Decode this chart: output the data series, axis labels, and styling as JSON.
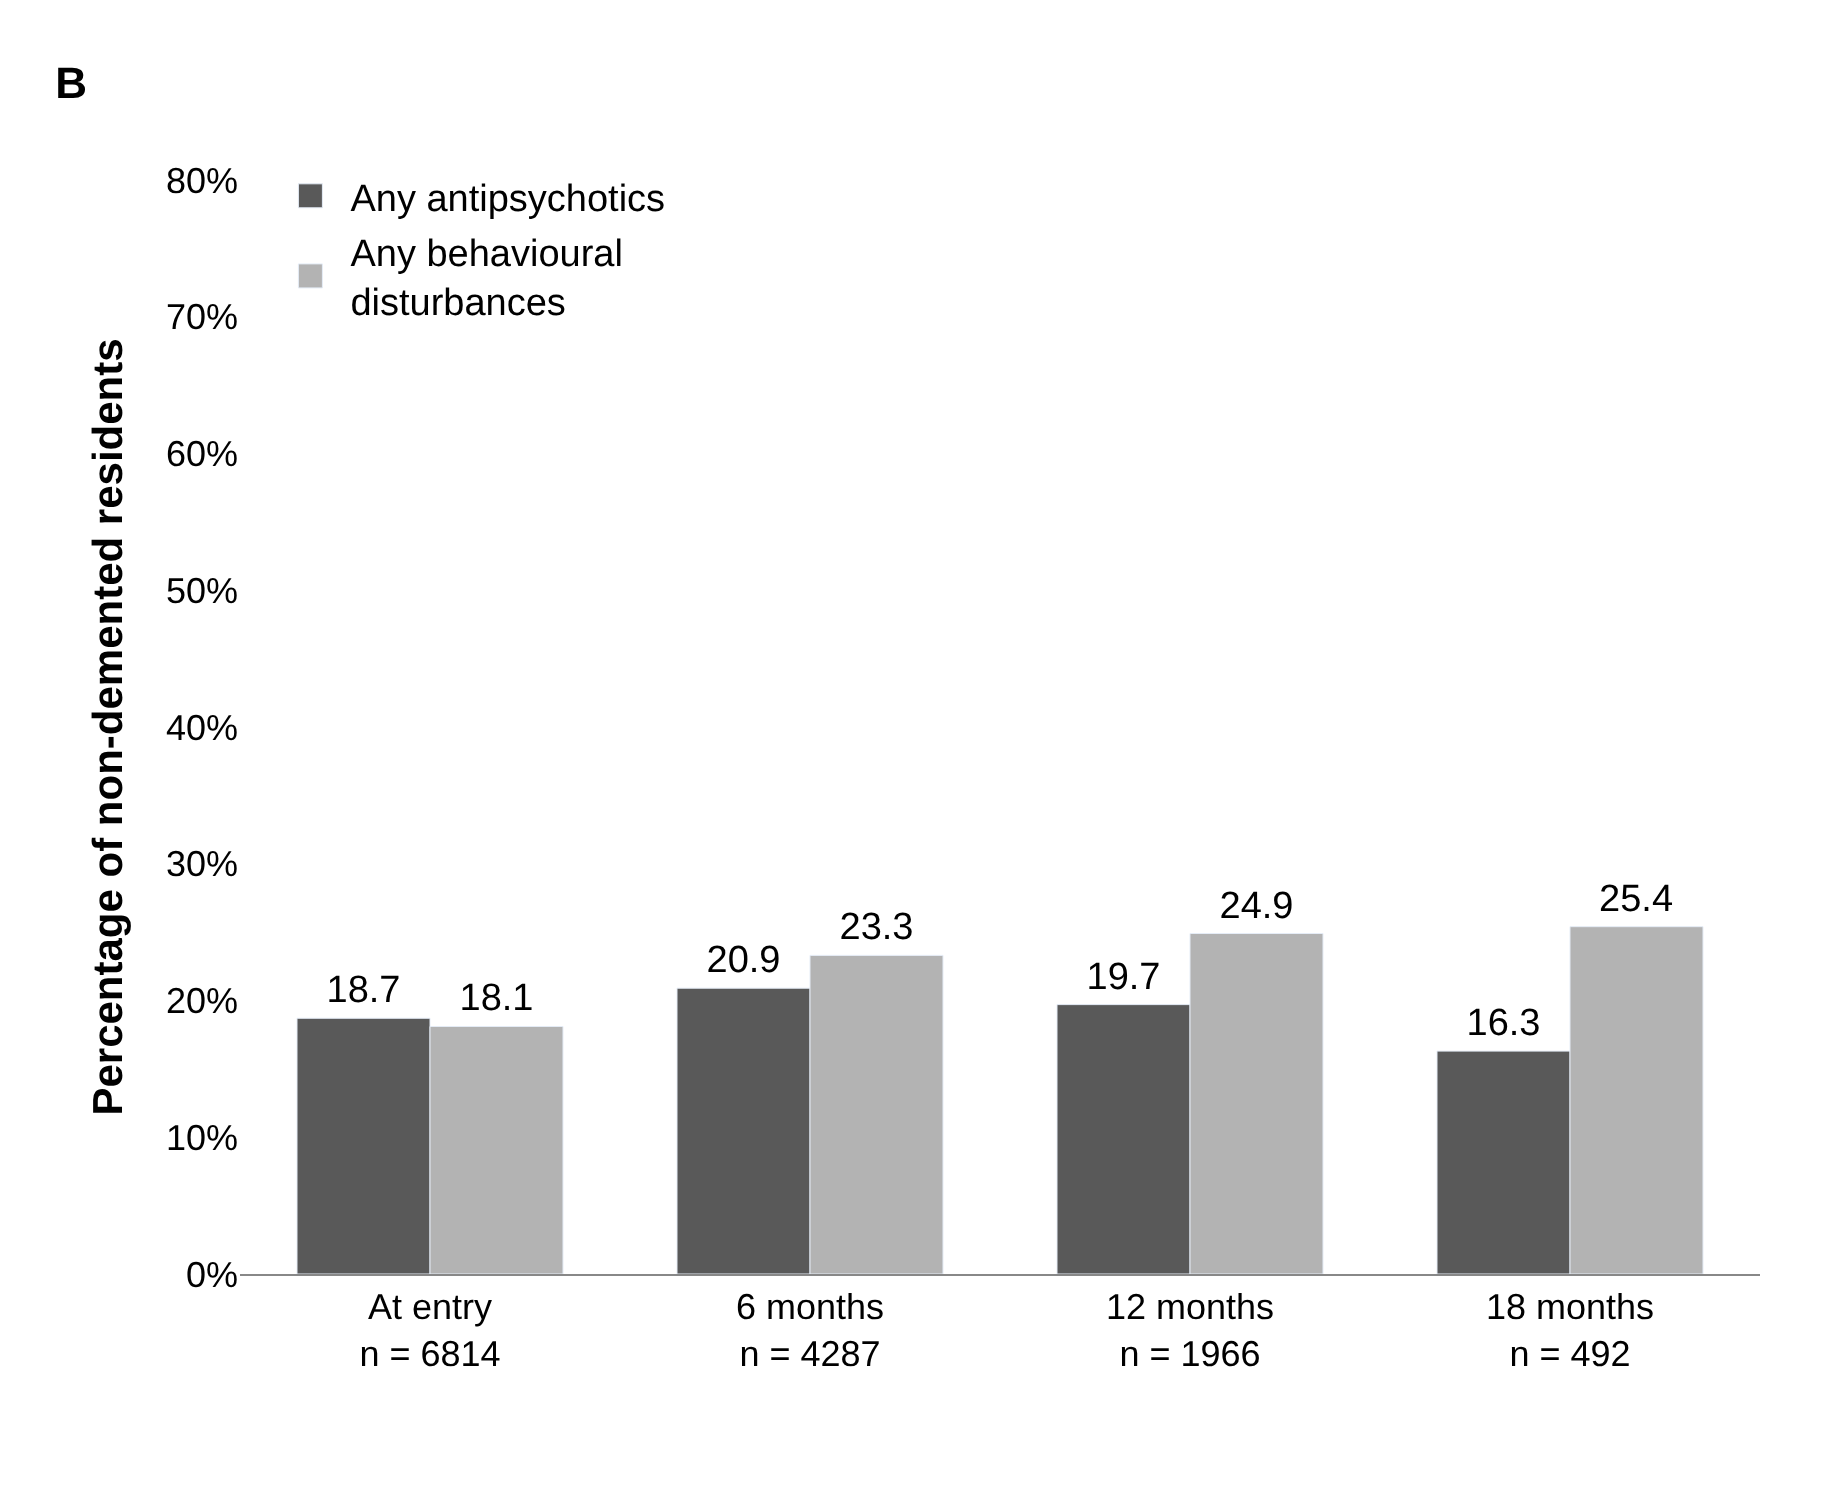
{
  "chart_data": {
    "type": "bar",
    "title": "B",
    "ylabel": "Percentage of non-demented residents",
    "categories": [
      "At entry\nn = 6814",
      "6 months\nn = 4287",
      "12 months\nn = 1966",
      "18 months\nn = 492"
    ],
    "series": [
      {
        "name": "Any antipsychotics",
        "color": "#595959",
        "values": [
          18.7,
          20.9,
          19.7,
          16.3
        ]
      },
      {
        "name": "Any behavioural\ndisturbances",
        "color": "#b3b3b3",
        "values": [
          18.1,
          23.3,
          24.9,
          25.4
        ]
      }
    ],
    "ylim": [
      0,
      80
    ],
    "yticks": [
      {
        "value": 0,
        "label": "0%"
      },
      {
        "value": 10,
        "label": "10%"
      },
      {
        "value": 20,
        "label": "20%"
      },
      {
        "value": 30,
        "label": "30%"
      },
      {
        "value": 40,
        "label": "40%"
      },
      {
        "value": 50,
        "label": "50%"
      },
      {
        "value": 60,
        "label": "60%"
      },
      {
        "value": 70,
        "label": "70%"
      },
      {
        "value": 80,
        "label": "80%"
      }
    ],
    "data_labels": true,
    "legend": "top left"
  }
}
